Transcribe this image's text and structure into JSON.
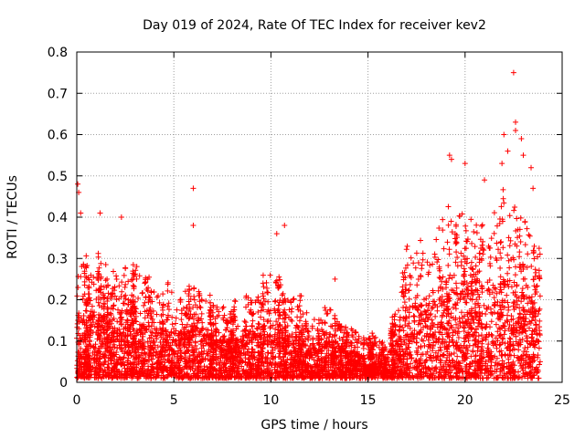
{
  "chart_data": {
    "type": "scatter",
    "title": "Day 019 of 2024, Rate Of TEC Index for receiver kev2",
    "xlabel": "GPS time / hours",
    "ylabel": "ROTI / TECUs",
    "xlim": [
      0,
      25
    ],
    "ylim": [
      0,
      0.8
    ],
    "xticks": [
      0,
      5,
      10,
      15,
      20,
      25
    ],
    "yticks": [
      0,
      0.1,
      0.2,
      0.3,
      0.4,
      0.5,
      0.6,
      0.7,
      0.8
    ],
    "grid": true,
    "marker": "+",
    "color": "#ff0000",
    "series": [
      {
        "name": "ROTI",
        "envelope_x": [
          0,
          0.5,
          1,
          2,
          3,
          4,
          5,
          6,
          7,
          8,
          9,
          10,
          11,
          12,
          13,
          14,
          15,
          16,
          16.7,
          17,
          18,
          19,
          20,
          21,
          22,
          23,
          23.8
        ],
        "envelope_y": [
          0.3,
          0.28,
          0.3,
          0.25,
          0.26,
          0.22,
          0.21,
          0.22,
          0.18,
          0.17,
          0.21,
          0.26,
          0.21,
          0.15,
          0.17,
          0.12,
          0.1,
          0.1,
          0.2,
          0.32,
          0.34,
          0.38,
          0.4,
          0.38,
          0.44,
          0.4,
          0.3
        ],
        "outliers": [
          [
            0.05,
            0.48
          ],
          [
            0.1,
            0.46
          ],
          [
            0.2,
            0.41
          ],
          [
            1.2,
            0.41
          ],
          [
            2.3,
            0.4
          ],
          [
            6.0,
            0.47
          ],
          [
            6.0,
            0.38
          ],
          [
            10.3,
            0.36
          ],
          [
            10.7,
            0.38
          ],
          [
            13.3,
            0.25
          ],
          [
            19.2,
            0.55
          ],
          [
            19.3,
            0.54
          ],
          [
            20.0,
            0.53
          ],
          [
            21.0,
            0.49
          ],
          [
            21.9,
            0.53
          ],
          [
            22.0,
            0.6
          ],
          [
            22.2,
            0.56
          ],
          [
            22.5,
            0.75
          ],
          [
            22.6,
            0.63
          ],
          [
            22.6,
            0.61
          ],
          [
            22.9,
            0.59
          ],
          [
            23.0,
            0.55
          ],
          [
            23.4,
            0.52
          ],
          [
            23.5,
            0.47
          ]
        ]
      }
    ]
  }
}
